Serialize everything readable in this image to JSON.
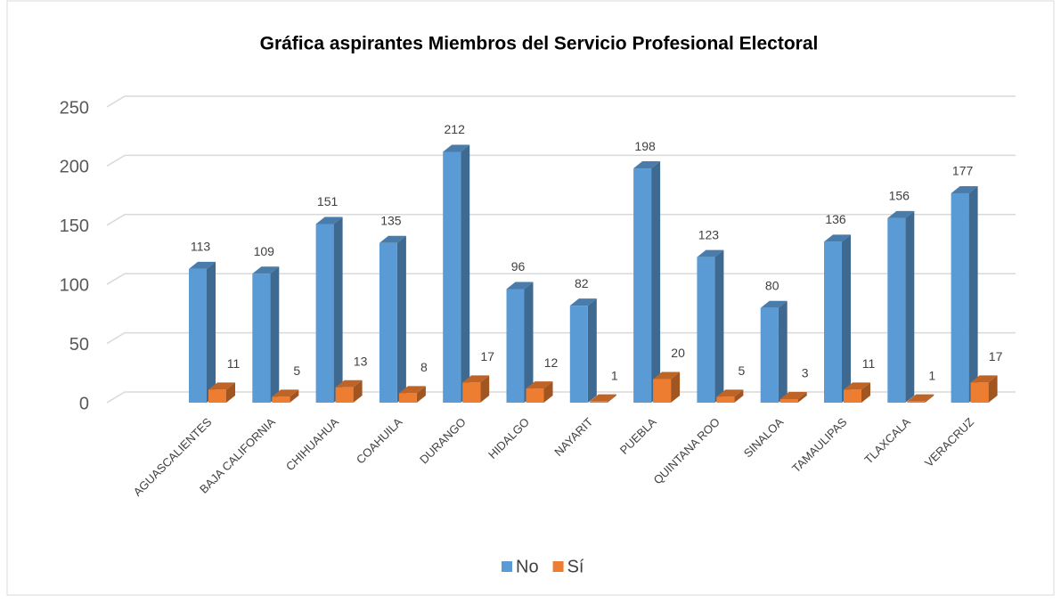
{
  "chart_data": {
    "type": "bar3d",
    "title": "Gráfica aspirantes  Miembros del Servicio Profesional Electoral",
    "categories": [
      "AGUASCALIENTES",
      "BAJA CALIFORNIA",
      "CHIHUAHUA",
      "COAHUILA",
      "DURANGO",
      "HIDALGO",
      "NAYARIT",
      "PUEBLA",
      "QUINTANA ROO",
      "SINALOA",
      "TAMAULIPAS",
      "TLAXCALA",
      "VERACRUZ"
    ],
    "series": [
      {
        "name": "No",
        "color": "#5b9bd5",
        "values": [
          113,
          109,
          151,
          135,
          212,
          96,
          82,
          198,
          123,
          80,
          136,
          156,
          177
        ]
      },
      {
        "name": "Sí",
        "color": "#ed7d31",
        "values": [
          11,
          5,
          13,
          8,
          17,
          12,
          1,
          20,
          5,
          3,
          11,
          1,
          17
        ]
      }
    ],
    "ylim": [
      0,
      250
    ],
    "yticks": [
      0,
      50,
      100,
      150,
      200,
      250
    ],
    "grid": true,
    "legend": "bottom"
  }
}
